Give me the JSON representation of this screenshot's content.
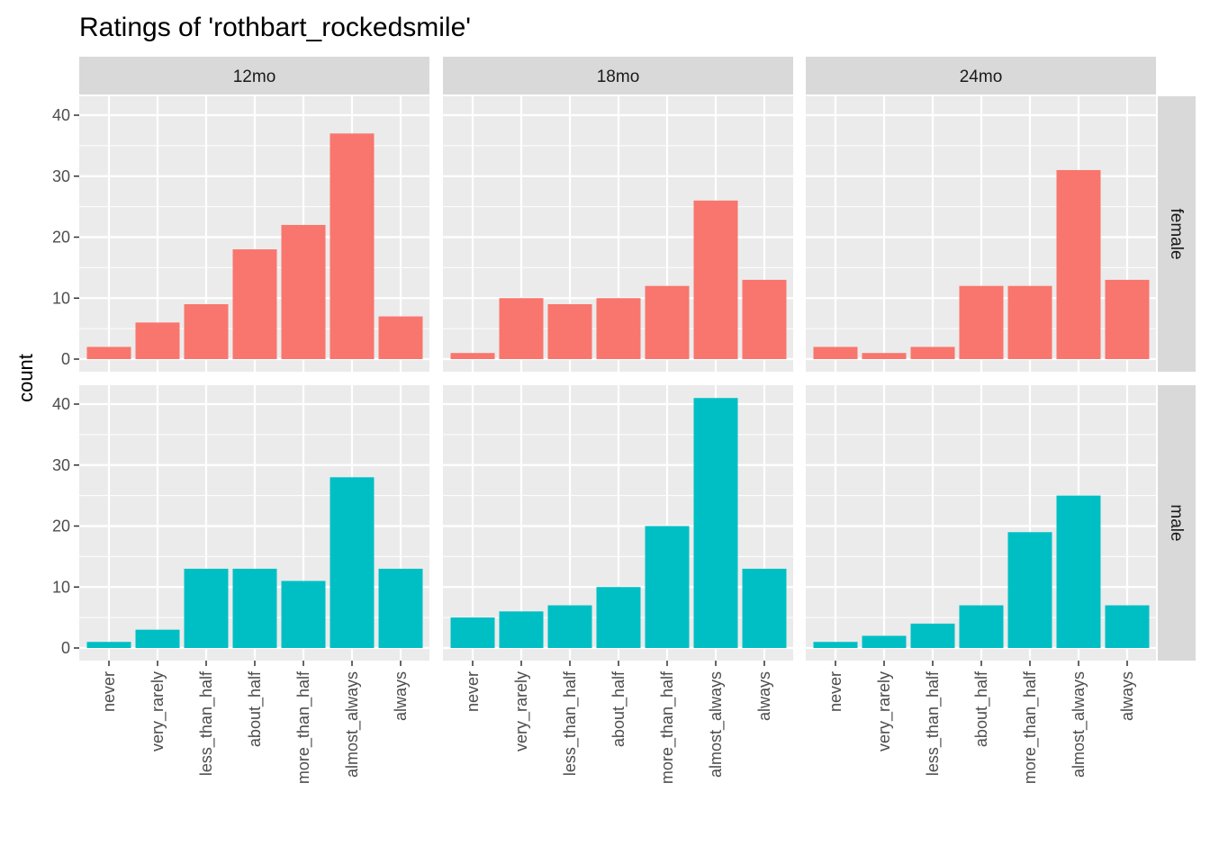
{
  "chart_data": {
    "type": "bar",
    "title": "Ratings of 'rothbart_rockedsmile'",
    "xlabel": "",
    "ylabel": "count",
    "categories": [
      "never",
      "very_rarely",
      "less_than_half",
      "about_half",
      "more_than_half",
      "almost_always",
      "always"
    ],
    "columns": [
      "12mo",
      "18mo",
      "24mo"
    ],
    "rows": [
      "female",
      "male"
    ],
    "ylim": [
      0,
      43
    ],
    "yticks": [
      0,
      10,
      20,
      30,
      40
    ],
    "grid": true,
    "legend": "none",
    "colors": {
      "female": "#F8766D",
      "male": "#00BFC4",
      "panel": "#EBEBEB",
      "strip": "#D9D9D9",
      "grid": "#FFFFFF"
    },
    "panels": [
      {
        "row": "female",
        "col": "12mo",
        "values": [
          2,
          6,
          9,
          18,
          22,
          37,
          7
        ]
      },
      {
        "row": "female",
        "col": "18mo",
        "values": [
          1,
          10,
          9,
          10,
          12,
          26,
          13
        ]
      },
      {
        "row": "female",
        "col": "24mo",
        "values": [
          2,
          1,
          2,
          12,
          12,
          31,
          13
        ]
      },
      {
        "row": "male",
        "col": "12mo",
        "values": [
          1,
          3,
          13,
          13,
          11,
          28,
          13
        ]
      },
      {
        "row": "male",
        "col": "18mo",
        "values": [
          5,
          6,
          7,
          10,
          20,
          41,
          13
        ]
      },
      {
        "row": "male",
        "col": "24mo",
        "values": [
          1,
          2,
          4,
          7,
          19,
          25,
          7
        ]
      }
    ]
  }
}
